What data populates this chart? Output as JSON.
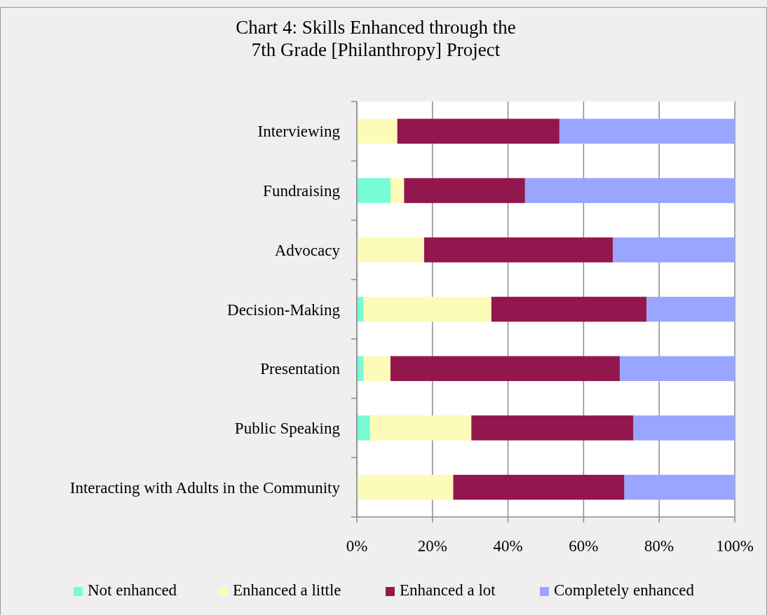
{
  "chart_data": {
    "type": "bar",
    "orientation": "horizontal",
    "stacked": true,
    "title": "Chart 4: Skills Enhanced through the\n7th Grade [Philanthropy] Project",
    "categories": [
      "Interviewing",
      "Fundraising",
      "Advocacy",
      "Decision-Making",
      "Presentation",
      "Public Speaking",
      "Interacting with Adults in the Community"
    ],
    "series": [
      {
        "name": "Not enhanced",
        "color": "#77fcd6",
        "values": [
          0,
          8.9,
          0,
          1.8,
          1.8,
          3.5,
          0
        ]
      },
      {
        "name": "Enhanced a little",
        "color": "#fdfbb9",
        "values": [
          10.7,
          3.6,
          17.8,
          33.8,
          7.1,
          26.8,
          25.5
        ]
      },
      {
        "name": "Enhanced a lot",
        "color": "#92174e",
        "values": [
          42.9,
          32.0,
          50.0,
          41.1,
          60.7,
          42.9,
          45.3
        ]
      },
      {
        "name": "Completely enhanced",
        "color": "#99a5fe",
        "values": [
          46.4,
          55.5,
          32.2,
          23.3,
          30.4,
          26.8,
          29.2
        ]
      }
    ],
    "xlim": [
      0,
      100
    ],
    "xticks": [
      {
        "value": 0,
        "label": "0%"
      },
      {
        "value": 20,
        "label": "20%"
      },
      {
        "value": 40,
        "label": "40%"
      },
      {
        "value": 60,
        "label": "60%"
      },
      {
        "value": 80,
        "label": "80%"
      },
      {
        "value": 100,
        "label": "100%"
      }
    ],
    "grid": "x",
    "legend": "bottom"
  }
}
